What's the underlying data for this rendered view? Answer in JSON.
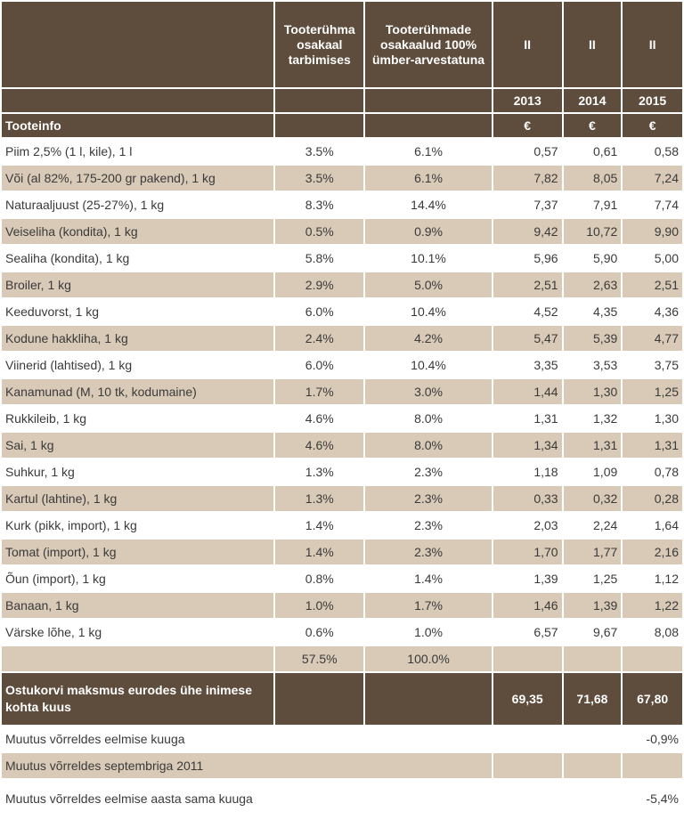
{
  "header": {
    "col_share": "Tooterühma osakaal tarbimises",
    "col_share100": "Tooterühmade osakaalud 100% ümber-arvestatuna",
    "period_labels": [
      "II",
      "II",
      "II"
    ],
    "years": [
      "2013",
      "2014",
      "2015"
    ],
    "section_label": "Tooteinfo",
    "currency": [
      "€",
      "€",
      "€"
    ]
  },
  "rows": [
    {
      "name": "Piim 2,5% (1 l, kile), 1 l",
      "share": "3.5%",
      "share100": "6.1%",
      "y2013": "0,57",
      "y2014": "0,61",
      "y2015": "0,58"
    },
    {
      "name": "Või (al 82%, 175-200 gr pakend), 1 kg",
      "share": "3.5%",
      "share100": "6.1%",
      "y2013": "7,82",
      "y2014": "8,05",
      "y2015": "7,24"
    },
    {
      "name": "Naturaaljuust (25-27%), 1 kg",
      "share": "8.3%",
      "share100": "14.4%",
      "y2013": "7,37",
      "y2014": "7,91",
      "y2015": "7,74"
    },
    {
      "name": "Veiseliha (kondita), 1 kg",
      "share": "0.5%",
      "share100": "0.9%",
      "y2013": "9,42",
      "y2014": "10,72",
      "y2015": "9,90"
    },
    {
      "name": "Sealiha (kondita), 1 kg",
      "share": "5.8%",
      "share100": "10.1%",
      "y2013": "5,96",
      "y2014": "5,90",
      "y2015": "5,00"
    },
    {
      "name": "Broiler, 1 kg",
      "share": "2.9%",
      "share100": "5.0%",
      "y2013": "2,51",
      "y2014": "2,63",
      "y2015": "2,51"
    },
    {
      "name": "Keeduvorst, 1 kg",
      "share": "6.0%",
      "share100": "10.4%",
      "y2013": "4,52",
      "y2014": "4,35",
      "y2015": "4,36"
    },
    {
      "name": "Kodune hakkliha, 1 kg",
      "share": "2.4%",
      "share100": "4.2%",
      "y2013": "5,47",
      "y2014": "5,39",
      "y2015": "4,77"
    },
    {
      "name": "Viinerid (lahtised), 1 kg",
      "share": "6.0%",
      "share100": "10.4%",
      "y2013": "3,35",
      "y2014": "3,53",
      "y2015": "3,75"
    },
    {
      "name": "Kanamunad (M, 10 tk, kodumaine)",
      "share": "1.7%",
      "share100": "3.0%",
      "y2013": "1,44",
      "y2014": "1,30",
      "y2015": "1,25"
    },
    {
      "name": "Rukkileib, 1 kg",
      "share": "4.6%",
      "share100": "8.0%",
      "y2013": "1,31",
      "y2014": "1,32",
      "y2015": "1,30"
    },
    {
      "name": "Sai, 1 kg",
      "share": "4.6%",
      "share100": "8.0%",
      "y2013": "1,34",
      "y2014": "1,31",
      "y2015": "1,31"
    },
    {
      "name": "Suhkur, 1 kg",
      "share": "1.3%",
      "share100": "2.3%",
      "y2013": "1,18",
      "y2014": "1,09",
      "y2015": "0,78"
    },
    {
      "name": "Kartul (lahtine), 1 kg",
      "share": "1.3%",
      "share100": "2.3%",
      "y2013": "0,33",
      "y2014": "0,32",
      "y2015": "0,28"
    },
    {
      "name": "Kurk (pikk, import), 1 kg",
      "share": "1.4%",
      "share100": "2.3%",
      "y2013": "2,03",
      "y2014": "2,24",
      "y2015": "1,64"
    },
    {
      "name": "Tomat (import), 1 kg",
      "share": "1.4%",
      "share100": "2.3%",
      "y2013": "1,70",
      "y2014": "1,77",
      "y2015": "2,16"
    },
    {
      "name": "Õun (import), 1 kg",
      "share": "0.8%",
      "share100": "1.4%",
      "y2013": "1,39",
      "y2014": "1,25",
      "y2015": "1,12"
    },
    {
      "name": "Banaan, 1 kg",
      "share": "1.0%",
      "share100": "1.7%",
      "y2013": "1,46",
      "y2014": "1,39",
      "y2015": "1,22"
    },
    {
      "name": "Värske lõhe, 1 kg",
      "share": "0.6%",
      "share100": "1.0%",
      "y2013": "6,57",
      "y2014": "9,67",
      "y2015": "8,08"
    }
  ],
  "sums": {
    "share": "57.5%",
    "share100": "100.0%"
  },
  "total": {
    "label": "Ostukorvi maksmus eurodes ühe inimese kohta kuus",
    "y2013": "69,35",
    "y2014": "71,68",
    "y2015": "67,80"
  },
  "changes": [
    {
      "label": "Muutus võrreldes eelmise kuuga",
      "value": "-0,9%"
    },
    {
      "label": "Muutus võrreldes septembriga 2011",
      "value": ""
    },
    {
      "label": "Muutus võrreldes eelmise aasta sama kuuga",
      "value": "-5,4%"
    }
  ]
}
